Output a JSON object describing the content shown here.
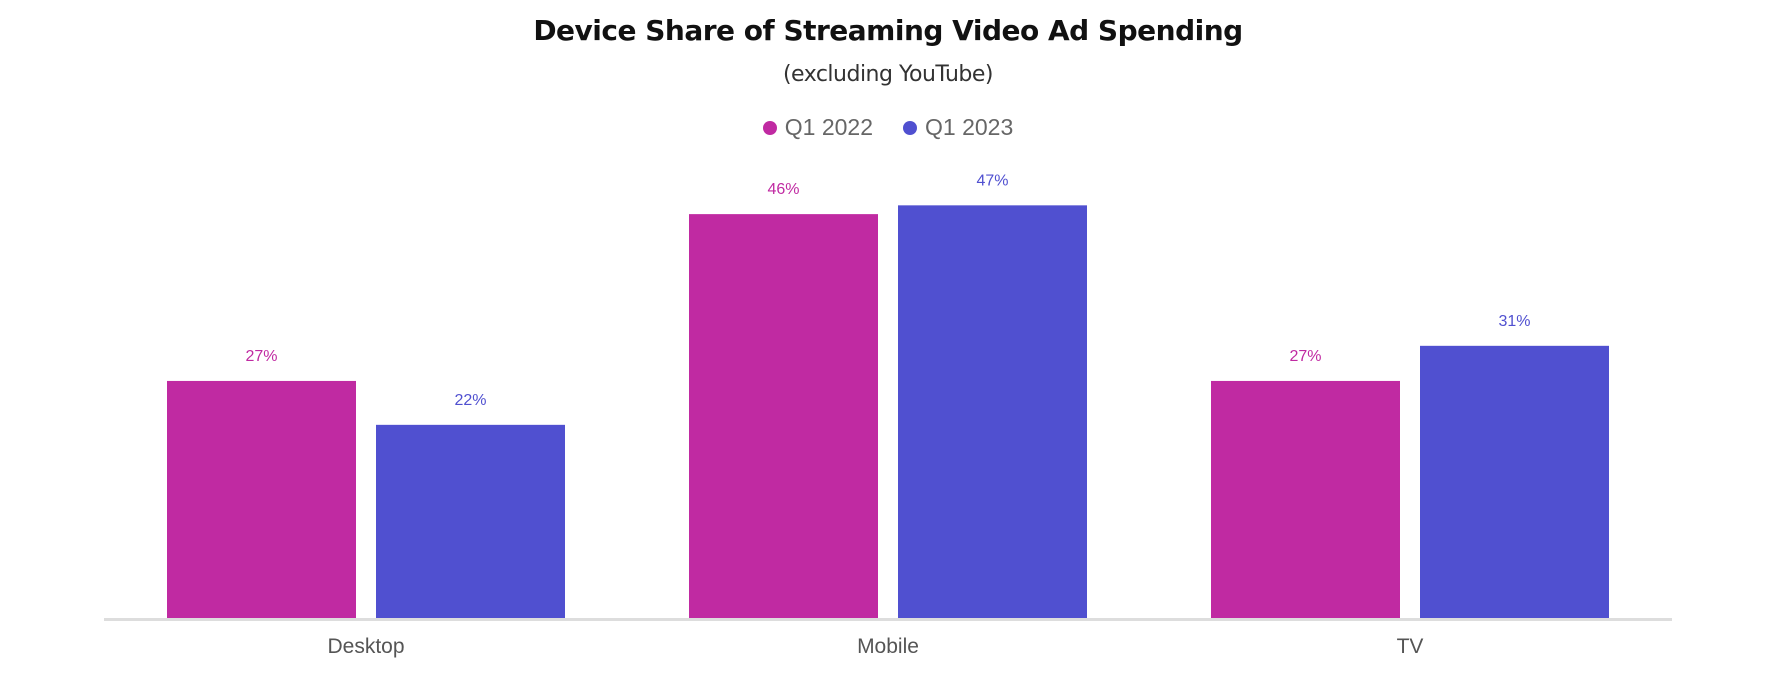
{
  "chart_data": {
    "type": "bar",
    "title": "Device Share of Streaming Video Ad Spending",
    "subtitle": "(excluding YouTube)",
    "xlabel": "",
    "ylabel": "",
    "categories": [
      "Desktop",
      "Mobile",
      "TV"
    ],
    "series": [
      {
        "name": "Q1 2022",
        "color": "#c02aa2",
        "values": [
          27,
          46,
          27
        ],
        "labels": [
          "27%",
          "46%",
          "27%"
        ]
      },
      {
        "name": "Q1 2023",
        "color": "#5050d0",
        "values": [
          22,
          47,
          31
        ],
        "labels": [
          "22%",
          "47%",
          "31%"
        ]
      }
    ],
    "ylim": [
      0,
      50
    ],
    "grid": false,
    "legend_position": "top-center",
    "axis_color": "#dddddd"
  }
}
